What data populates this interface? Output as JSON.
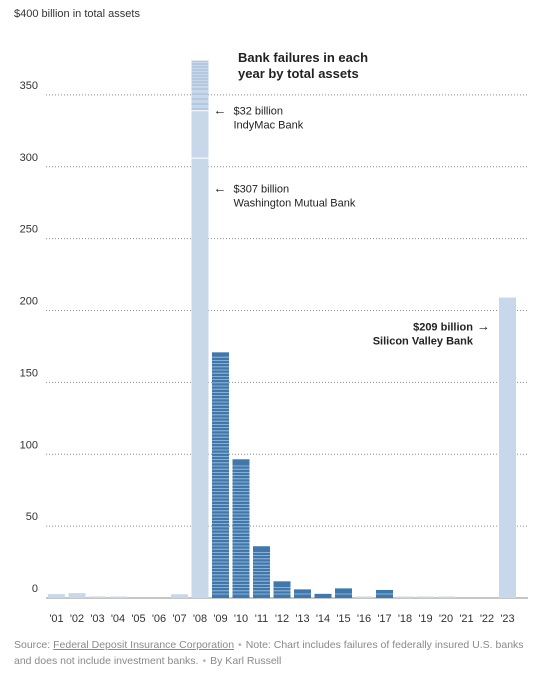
{
  "chart_data": {
    "type": "bar",
    "title": "Bank failures in each year by total assets",
    "title_lines": [
      "Bank failures in each",
      "year by total assets"
    ],
    "ylabel": "$400 billion in total assets",
    "ylim": [
      0,
      400
    ],
    "yticks": [
      0,
      50,
      100,
      150,
      200,
      250,
      300,
      350
    ],
    "grid": true,
    "categories": [
      "'01",
      "'02",
      "'03",
      "'04",
      "'05",
      "'06",
      "'07",
      "'08",
      "'09",
      "'10",
      "'11",
      "'12",
      "'13",
      "'14",
      "'15",
      "'16",
      "'17",
      "'18",
      "'19",
      "'20",
      "'21",
      "'22",
      "'23"
    ],
    "values": [
      2.7,
      3.4,
      1.1,
      0.2,
      0,
      0,
      2.6,
      373.6,
      170.9,
      96.5,
      36.0,
      11.6,
      6.0,
      2.9,
      6.7,
      0.3,
      5.6,
      0.2,
      0.2,
      0.5,
      0,
      0,
      209
    ],
    "annotations": [
      {
        "category": "'08",
        "value": 339,
        "arrow": "←",
        "lines": [
          "$32 billion",
          "IndyMac Bank"
        ],
        "bold": false,
        "side": "right"
      },
      {
        "category": "'08",
        "value": 285,
        "arrow": "←",
        "lines": [
          "$307 billion",
          "Washington Mutual Bank"
        ],
        "bold": false,
        "side": "right"
      },
      {
        "category": "'23",
        "value": 189,
        "arrow": "→",
        "lines": [
          "$209 billion",
          "Silicon Valley Bank"
        ],
        "bold": true,
        "side": "left"
      }
    ],
    "colors": {
      "bar_light": "#c9d7ea",
      "bar_dark": "#3f78ad",
      "bar_stripe": "#ffffff",
      "grid": "#8e8e8e",
      "axis_text": "#333333"
    }
  },
  "footer": {
    "source_label": "Source:",
    "source_link": "Federal Deposit Insurance Corporation",
    "note": "Note: Chart includes failures of federally insured U.S. banks and does not include investment banks.",
    "byline": "By Karl Russell"
  }
}
